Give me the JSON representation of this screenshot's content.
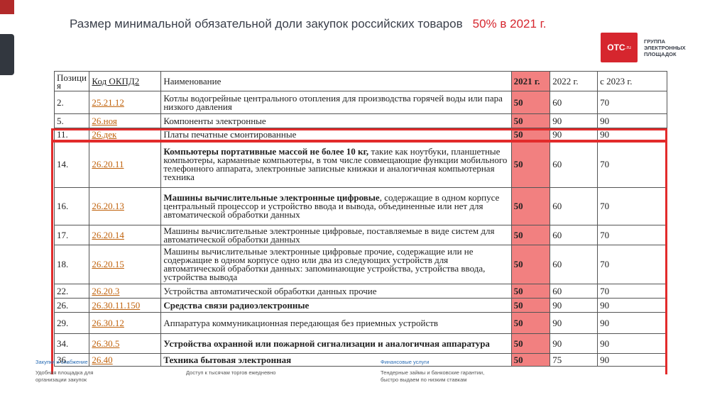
{
  "header": {
    "title": "Размер минимальной обязательной доли закупок  российских товаров",
    "accent": "50% в 2021 г."
  },
  "logo": {
    "brand": "ОТС",
    "domain": ".ru",
    "caption_lines": [
      "ГРУППА",
      "ЭЛЕКТРОННЫХ",
      "ПЛОЩАДОК"
    ]
  },
  "table": {
    "headers": [
      "Позиция",
      "Код ОКПД2",
      "Наименование",
      "2021 г.",
      "2022 г.",
      "с 2023  г."
    ],
    "rows": [
      {
        "pos": "2.",
        "code": "25.21.12",
        "name": "Котлы водогрейные центрального отопления для производства горячей воды или пара низкого давления",
        "v2021": "50",
        "v2022": "60",
        "v2023": "70",
        "bold": false
      },
      {
        "pos": "5.",
        "code": "26.ноя",
        "name": "Компоненты электронные",
        "v2021": "50",
        "v2022": "90",
        "v2023": "90",
        "bold": false
      },
      {
        "pos": "11.",
        "code": "26.дек",
        "name": "Платы печатные смонтированные",
        "v2021": "50",
        "v2022": "90",
        "v2023": "90",
        "bold": false
      },
      {
        "pos": "14.",
        "code": "26.20.11",
        "name_bold": "Компьютеры портативные массой не более 10 кг,",
        "name": " такие как ноутбуки, планшетные компьютеры, карманные компьютеры, в том числе совмещающие функции мобильного телефонного аппарата, электронные записные книжки и аналогичная компьютерная техника",
        "v2021": "50",
        "v2022": "60",
        "v2023": "70",
        "bold": false
      },
      {
        "pos": "16.",
        "code": "26.20.13",
        "name_bold": "Машины вычислительные электронные цифровые",
        "name": ", содержащие в одном корпусе центральный процессор и устройство ввода и вывода, объединенные или нет для автоматической обработки данных",
        "v2021": "50",
        "v2022": "60",
        "v2023": "70",
        "bold": false
      },
      {
        "pos": "17.",
        "code": "26.20.14",
        "name": "Машины вычислительные электронные цифровые, поставляемые в виде систем для автоматической обработки данных",
        "v2021": "50",
        "v2022": "60",
        "v2023": "70",
        "bold": false
      },
      {
        "pos": "18.",
        "code": "26.20.15",
        "name": "Машины вычислительные электронные цифровые прочие, содержащие или не содержащие в одном корпусе одно или два из следующих устройств для автоматической обработки данных: запоминающие устройства, устройства ввода, устройства вывода",
        "v2021": "50",
        "v2022": "60",
        "v2023": "70",
        "bold": false
      },
      {
        "pos": "22.",
        "code": "26.20.3",
        "name": "Устройства автоматической обработки данных прочие",
        "v2021": "50",
        "v2022": "60",
        "v2023": "70",
        "bold": false
      },
      {
        "pos": "26.",
        "code": "26.30.11.150",
        "name": "Средства связи радиоэлектронные",
        "v2021": "50",
        "v2022": "90",
        "v2023": "90",
        "bold": true
      },
      {
        "pos": "29.",
        "code": "26.30.12",
        "name": "Аппаратура коммуникационная передающая без приемных устройств",
        "v2021": "50",
        "v2022": "90",
        "v2023": "90",
        "bold": false
      },
      {
        "pos": "34.",
        "code": "26.30.5",
        "name": "Устройства охранной или пожарной сигнализации и аналогичная аппаратура",
        "v2021": "50",
        "v2022": "90",
        "v2023": "90",
        "bold": true
      },
      {
        "pos": "36.",
        "code": "26.40",
        "name": "Техника бытовая электронная",
        "v2021": "50",
        "v2022": "75",
        "v2023": "90",
        "bold": true
      }
    ]
  },
  "footer": {
    "col1": {
      "title": "Закупки и снабжение",
      "text1": "Удобная площадка для",
      "text2": "организации закупок"
    },
    "col2": {
      "text1": "Доступ к тысячам торгов ежедневно"
    },
    "col3": {
      "title": "Финансовые услуги",
      "text1": "Тендерные займы и банковские гарантии,",
      "text2": "быстро выдаем по низким ставкам"
    }
  },
  "colors": {
    "accent": "#d6262e",
    "highlight_column": "#f28080",
    "link": "#c0620c",
    "dark_bar": "#32373f"
  }
}
